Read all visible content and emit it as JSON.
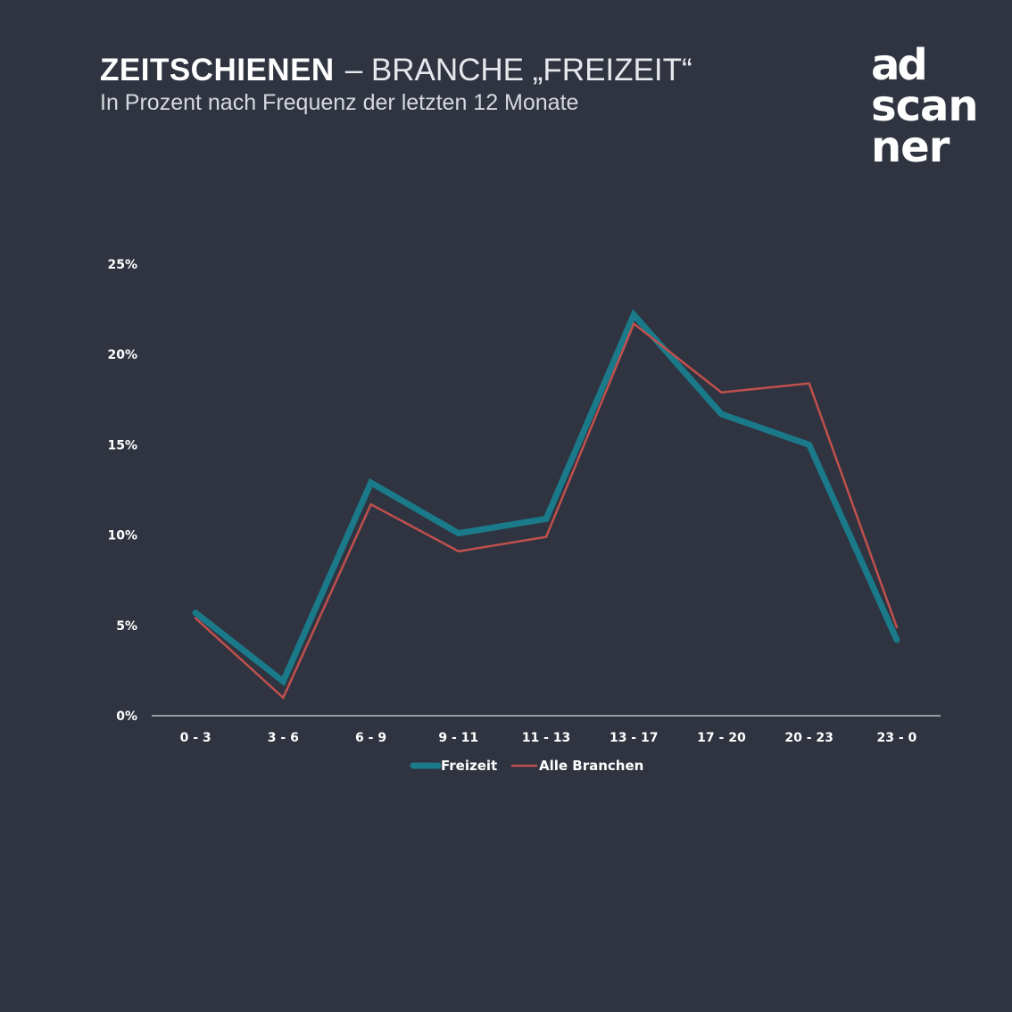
{
  "header": {
    "title_bold": "ZEITSCHIENEN",
    "title_rest": "– BRANCHE „FREIZEIT“",
    "subtitle": "In Prozent nach Frequenz der letzten 12 Monate"
  },
  "logo": {
    "line1": "ad",
    "line2": "scan",
    "line3": "ner"
  },
  "colors": {
    "background": "#2f3440",
    "freizeit": "#1a7a8a",
    "alle_branchen": "#c0504d",
    "axis": "#ffffff"
  },
  "chart_data": {
    "type": "line",
    "title": "ZEITSCHIENEN – BRANCHE „FREIZEIT“",
    "subtitle": "In Prozent nach Frequenz der letzten 12 Monate",
    "xlabel": "",
    "ylabel": "",
    "categories": [
      "0 - 3",
      "3 - 6",
      "6 - 9",
      "9 - 11",
      "11 - 13",
      "13 - 17",
      "17 - 20",
      "20 - 23",
      "23 - 0"
    ],
    "yticks": [
      "0%",
      "5%",
      "10%",
      "15%",
      "20%",
      "25%"
    ],
    "ylim": [
      0,
      25
    ],
    "grid": false,
    "legend_position": "bottom",
    "series": [
      {
        "name": "Freizeit",
        "values": [
          5.7,
          1.9,
          12.9,
          10.1,
          10.9,
          22.2,
          16.7,
          15.0,
          4.2
        ]
      },
      {
        "name": "Alle Branchen",
        "values": [
          5.4,
          1.0,
          11.7,
          9.1,
          9.9,
          21.7,
          17.9,
          18.4,
          4.9
        ]
      }
    ]
  }
}
